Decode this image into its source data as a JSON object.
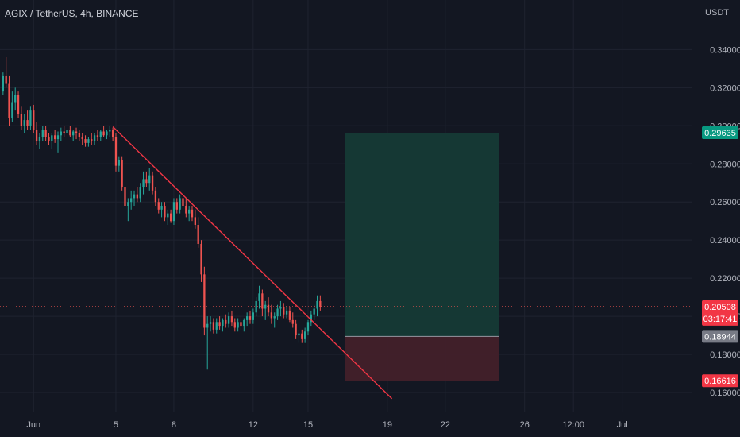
{
  "header": {
    "symbol_title": "AGIX / TetherUS, 4h, BINANCE",
    "currency": "USDT"
  },
  "chart_data": {
    "type": "candlestick",
    "symbol": "AGIX / TetherUS",
    "interval": "4h",
    "exchange": "BINANCE",
    "ylim": [
      0.15,
      0.356
    ],
    "y_ticks": [
      0.34,
      0.32,
      0.3,
      0.28,
      0.26,
      0.24,
      0.22,
      0.2,
      0.18,
      0.16
    ],
    "y_tick_labels": [
      "0.34000",
      "0.32000",
      "0.30000",
      "0.28000",
      "0.26000",
      "0.24000",
      "0.22000",
      "0.20000",
      "0.18000",
      "0.16000"
    ],
    "x_ticks": [
      {
        "label": "Jun",
        "bar": 10
      },
      {
        "label": "5",
        "bar": 37
      },
      {
        "label": "8",
        "bar": 56
      },
      {
        "label": "12",
        "bar": 82
      },
      {
        "label": "15",
        "bar": 100
      },
      {
        "label": "19",
        "bar": 126
      },
      {
        "label": "22",
        "bar": 145
      },
      {
        "label": "26",
        "bar": 171
      },
      {
        "label": "12:00",
        "bar": 187
      },
      {
        "label": "Jul",
        "bar": 203
      }
    ],
    "x_range": [
      -1,
      226
    ],
    "candles": [
      [
        0.318,
        0.328,
        0.316,
        0.326
      ],
      [
        0.326,
        0.336,
        0.32,
        0.322
      ],
      [
        0.322,
        0.326,
        0.3,
        0.304
      ],
      [
        0.304,
        0.318,
        0.302,
        0.312
      ],
      [
        0.312,
        0.32,
        0.308,
        0.316
      ],
      [
        0.316,
        0.318,
        0.304,
        0.306
      ],
      [
        0.306,
        0.31,
        0.298,
        0.3
      ],
      [
        0.3,
        0.306,
        0.296,
        0.303
      ],
      [
        0.303,
        0.308,
        0.298,
        0.3
      ],
      [
        0.3,
        0.31,
        0.298,
        0.308
      ],
      [
        0.308,
        0.311,
        0.296,
        0.298
      ],
      [
        0.298,
        0.302,
        0.29,
        0.292
      ],
      [
        0.292,
        0.296,
        0.288,
        0.294
      ],
      [
        0.294,
        0.3,
        0.292,
        0.298
      ],
      [
        0.298,
        0.3,
        0.292,
        0.294
      ],
      [
        0.294,
        0.296,
        0.29,
        0.292
      ],
      [
        0.292,
        0.296,
        0.288,
        0.295
      ],
      [
        0.295,
        0.298,
        0.291,
        0.293
      ],
      [
        0.293,
        0.297,
        0.286,
        0.295
      ],
      [
        0.295,
        0.299,
        0.292,
        0.297
      ],
      [
        0.297,
        0.3,
        0.294,
        0.296
      ],
      [
        0.296,
        0.299,
        0.292,
        0.298
      ],
      [
        0.298,
        0.3,
        0.294,
        0.295
      ],
      [
        0.295,
        0.298,
        0.292,
        0.297
      ],
      [
        0.297,
        0.299,
        0.293,
        0.296
      ],
      [
        0.296,
        0.298,
        0.292,
        0.294
      ],
      [
        0.294,
        0.296,
        0.29,
        0.293
      ],
      [
        0.293,
        0.295,
        0.289,
        0.291
      ],
      [
        0.291,
        0.294,
        0.289,
        0.293
      ],
      [
        0.293,
        0.296,
        0.29,
        0.292
      ],
      [
        0.292,
        0.296,
        0.29,
        0.295
      ],
      [
        0.295,
        0.298,
        0.292,
        0.294
      ],
      [
        0.294,
        0.298,
        0.292,
        0.297
      ],
      [
        0.297,
        0.3,
        0.294,
        0.295
      ],
      [
        0.295,
        0.298,
        0.293,
        0.297
      ],
      [
        0.297,
        0.3,
        0.294,
        0.298
      ],
      [
        0.298,
        0.299,
        0.292,
        0.294
      ],
      [
        0.294,
        0.296,
        0.276,
        0.279
      ],
      [
        0.279,
        0.284,
        0.276,
        0.282
      ],
      [
        0.282,
        0.284,
        0.266,
        0.268
      ],
      [
        0.268,
        0.27,
        0.255,
        0.258
      ],
      [
        0.258,
        0.262,
        0.25,
        0.26
      ],
      [
        0.26,
        0.266,
        0.256,
        0.262
      ],
      [
        0.262,
        0.266,
        0.258,
        0.264
      ],
      [
        0.264,
        0.268,
        0.26,
        0.262
      ],
      [
        0.262,
        0.27,
        0.26,
        0.268
      ],
      [
        0.268,
        0.276,
        0.264,
        0.272
      ],
      [
        0.272,
        0.276,
        0.268,
        0.27
      ],
      [
        0.27,
        0.278,
        0.266,
        0.274
      ],
      [
        0.274,
        0.276,
        0.264,
        0.266
      ],
      [
        0.266,
        0.268,
        0.258,
        0.26
      ],
      [
        0.26,
        0.262,
        0.254,
        0.256
      ],
      [
        0.256,
        0.26,
        0.252,
        0.258
      ],
      [
        0.258,
        0.26,
        0.25,
        0.252
      ],
      [
        0.252,
        0.256,
        0.248,
        0.254
      ],
      [
        0.254,
        0.256,
        0.249,
        0.25
      ],
      [
        0.25,
        0.262,
        0.248,
        0.26
      ],
      [
        0.26,
        0.262,
        0.254,
        0.256
      ],
      [
        0.256,
        0.264,
        0.254,
        0.262
      ],
      [
        0.262,
        0.264,
        0.256,
        0.258
      ],
      [
        0.258,
        0.262,
        0.252,
        0.254
      ],
      [
        0.254,
        0.258,
        0.25,
        0.256
      ],
      [
        0.256,
        0.258,
        0.25,
        0.252
      ],
      [
        0.252,
        0.256,
        0.246,
        0.248
      ],
      [
        0.248,
        0.252,
        0.236,
        0.238
      ],
      [
        0.238,
        0.24,
        0.218,
        0.222
      ],
      [
        0.222,
        0.226,
        0.19,
        0.194
      ],
      [
        0.194,
        0.2,
        0.172,
        0.196
      ],
      [
        0.196,
        0.2,
        0.192,
        0.197
      ],
      [
        0.197,
        0.199,
        0.191,
        0.193
      ],
      [
        0.193,
        0.199,
        0.191,
        0.197
      ],
      [
        0.197,
        0.2,
        0.193,
        0.195
      ],
      [
        0.195,
        0.199,
        0.192,
        0.198
      ],
      [
        0.198,
        0.201,
        0.194,
        0.196
      ],
      [
        0.196,
        0.202,
        0.194,
        0.2
      ],
      [
        0.2,
        0.203,
        0.195,
        0.197
      ],
      [
        0.197,
        0.199,
        0.192,
        0.194
      ],
      [
        0.194,
        0.199,
        0.192,
        0.197
      ],
      [
        0.197,
        0.2,
        0.193,
        0.195
      ],
      [
        0.195,
        0.199,
        0.192,
        0.198
      ],
      [
        0.198,
        0.202,
        0.195,
        0.2
      ],
      [
        0.2,
        0.203,
        0.196,
        0.198
      ],
      [
        0.198,
        0.204,
        0.196,
        0.202
      ],
      [
        0.202,
        0.21,
        0.2,
        0.208
      ],
      [
        0.208,
        0.216,
        0.204,
        0.212
      ],
      [
        0.212,
        0.214,
        0.2,
        0.204
      ],
      [
        0.204,
        0.208,
        0.198,
        0.206
      ],
      [
        0.206,
        0.21,
        0.2,
        0.202
      ],
      [
        0.202,
        0.206,
        0.196,
        0.199
      ],
      [
        0.199,
        0.202,
        0.194,
        0.2
      ],
      [
        0.2,
        0.206,
        0.198,
        0.204
      ],
      [
        0.204,
        0.208,
        0.2,
        0.205
      ],
      [
        0.205,
        0.207,
        0.199,
        0.201
      ],
      [
        0.201,
        0.205,
        0.199,
        0.203
      ],
      [
        0.203,
        0.205,
        0.197,
        0.198
      ],
      [
        0.198,
        0.202,
        0.194,
        0.196
      ],
      [
        0.196,
        0.198,
        0.188,
        0.19
      ],
      [
        0.19,
        0.193,
        0.186,
        0.191
      ],
      [
        0.191,
        0.193,
        0.186,
        0.188
      ],
      [
        0.188,
        0.194,
        0.186,
        0.192
      ],
      [
        0.192,
        0.198,
        0.19,
        0.197
      ],
      [
        0.197,
        0.203,
        0.195,
        0.201
      ],
      [
        0.201,
        0.206,
        0.198,
        0.204
      ],
      [
        0.204,
        0.211,
        0.2,
        0.208
      ],
      [
        0.208,
        0.211,
        0.203,
        0.205
      ]
    ],
    "trendline": {
      "from": {
        "bar": 36,
        "price": 0.2995
      },
      "to": {
        "bar": 127.5,
        "price": 0.1568
      }
    },
    "last_price": 0.20508,
    "countdown": "03:17:41",
    "position": {
      "entry": 0.18944,
      "target": 0.29635,
      "stop": 0.16616,
      "from_bar": 112,
      "to_bar": 162.5
    },
    "price_labels": {
      "target": "0.29635",
      "current": "0.20508",
      "entry": "0.18944",
      "stop": "0.16616"
    },
    "colors": {
      "background": "#131722",
      "grid": "#1f2330",
      "up": "#26a69a",
      "down": "#ef5350",
      "trendline": "#f23645",
      "profit_zone": "#153a36",
      "loss_zone": "#42202a",
      "axis_text": "#b2b5be"
    }
  }
}
